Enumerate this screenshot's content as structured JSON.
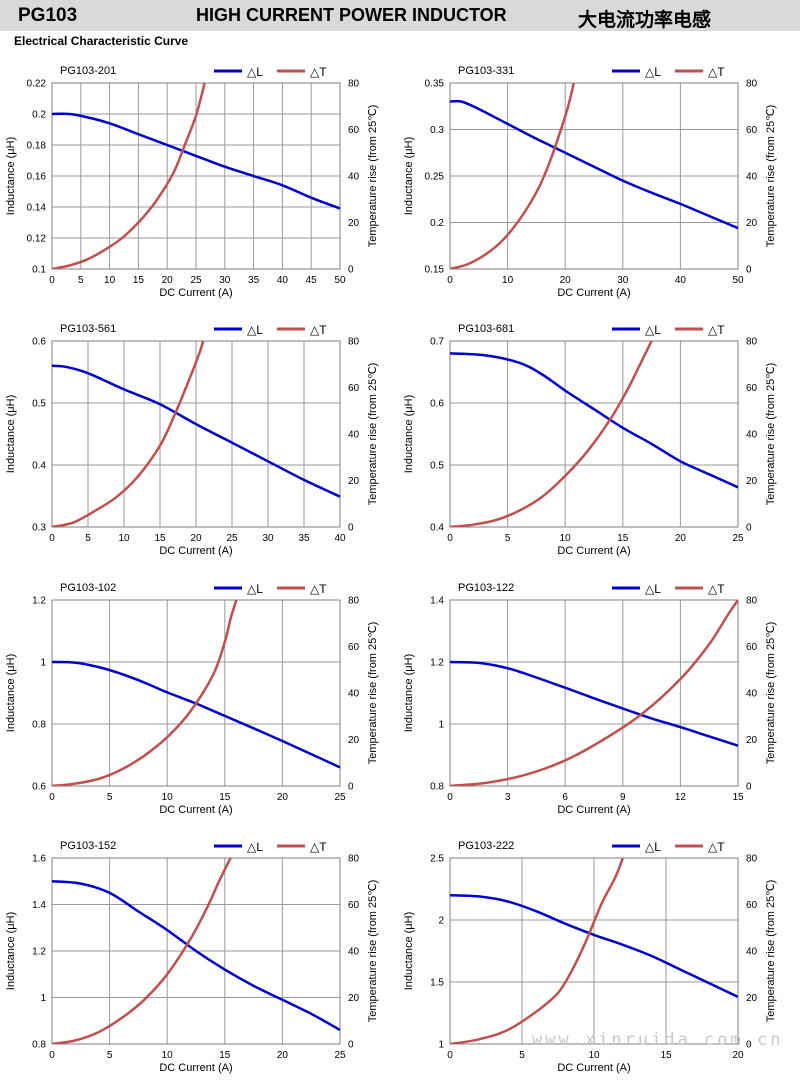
{
  "header": {
    "part_code": "PG103",
    "title": "HIGH CURRENT POWER INDUCTOR",
    "title_cn": "大电流功率电感"
  },
  "subtitle": "Electrical Characteristic Curve",
  "watermark": "www.xinruida.com.cn",
  "colors": {
    "inductance": "#0000cc",
    "temperature": "#c0504d",
    "grid": "#9a9a9a",
    "header_bg": "#d9d9d9"
  },
  "chart_data": [
    {
      "type": "line",
      "title": "PG103-201",
      "xlabel": "DC Current (A)",
      "ylabel": "Inductance (μH)",
      "y2label": "Temperature rise (from 25℃)",
      "legend": [
        "△L",
        "△T"
      ],
      "xlim": [
        0,
        50
      ],
      "xticks": [
        0,
        5,
        10,
        15,
        20,
        25,
        30,
        35,
        40,
        45,
        50
      ],
      "ylim": [
        0.1,
        0.22
      ],
      "yticks": [
        "0.1",
        "0.12",
        "0.14",
        "0.16",
        "0.18",
        "0.2",
        "0.22"
      ],
      "y2lim": [
        0,
        80
      ],
      "y2ticks": [
        0,
        20,
        40,
        60,
        80
      ],
      "series": [
        {
          "name": "△L",
          "axis": "left",
          "points": [
            [
              0,
              0.2
            ],
            [
              3,
              0.2
            ],
            [
              6,
              0.198
            ],
            [
              10,
              0.194
            ],
            [
              15,
              0.187
            ],
            [
              20,
              0.18
            ],
            [
              25,
              0.173
            ],
            [
              30,
              0.166
            ],
            [
              35,
              0.16
            ],
            [
              40,
              0.154
            ],
            [
              45,
              0.146
            ],
            [
              50,
              0.139
            ]
          ]
        },
        {
          "name": "△T",
          "axis": "right",
          "points": [
            [
              0,
              0
            ],
            [
              3,
              1.5
            ],
            [
              6,
              4
            ],
            [
              9,
              8
            ],
            [
              12,
              13
            ],
            [
              15,
              20
            ],
            [
              18,
              29
            ],
            [
              21,
              41
            ],
            [
              23,
              53
            ],
            [
              25,
              66
            ],
            [
              26.5,
              80
            ]
          ]
        }
      ]
    },
    {
      "type": "line",
      "title": "PG103-331",
      "xlabel": "DC Current (A)",
      "ylabel": "Inductance (μH)",
      "y2label": "Temperature rise (from 25℃)",
      "legend": [
        "△L",
        "△T"
      ],
      "xlim": [
        0,
        50
      ],
      "xticks": [
        0,
        10,
        20,
        30,
        40,
        50
      ],
      "ylim": [
        0.15,
        0.35
      ],
      "yticks": [
        "0.15",
        "0.2",
        "0.25",
        "0.3",
        "0.35"
      ],
      "y2lim": [
        0,
        80
      ],
      "y2ticks": [
        0,
        20,
        40,
        60,
        80
      ],
      "series": [
        {
          "name": "△L",
          "axis": "left",
          "points": [
            [
              0,
              0.33
            ],
            [
              2,
              0.33
            ],
            [
              5,
              0.322
            ],
            [
              10,
              0.306
            ],
            [
              15,
              0.29
            ],
            [
              20,
              0.275
            ],
            [
              25,
              0.26
            ],
            [
              30,
              0.245
            ],
            [
              35,
              0.232
            ],
            [
              40,
              0.22
            ],
            [
              45,
              0.207
            ],
            [
              50,
              0.194
            ]
          ]
        },
        {
          "name": "△T",
          "axis": "right",
          "points": [
            [
              0,
              0
            ],
            [
              3,
              2
            ],
            [
              6,
              6
            ],
            [
              9,
              12
            ],
            [
              12,
              21
            ],
            [
              15,
              33
            ],
            [
              17,
              44
            ],
            [
              19,
              58
            ],
            [
              20.5,
              70
            ],
            [
              21.5,
              80
            ]
          ]
        }
      ]
    },
    {
      "type": "line",
      "title": "PG103-561",
      "xlabel": "DC Current (A)",
      "ylabel": "Inductance (μH)",
      "y2label": "Temperature rise (from 25℃)",
      "legend": [
        "△L",
        "△T"
      ],
      "xlim": [
        0,
        40
      ],
      "xticks": [
        0,
        5,
        10,
        15,
        20,
        25,
        30,
        35,
        40
      ],
      "ylim": [
        0.3,
        0.6
      ],
      "yticks": [
        "0.3",
        "0.4",
        "0.5",
        "0.6"
      ],
      "y2lim": [
        0,
        80
      ],
      "y2ticks": [
        0,
        20,
        40,
        60,
        80
      ],
      "series": [
        {
          "name": "△L",
          "axis": "left",
          "points": [
            [
              0,
              0.56
            ],
            [
              2,
              0.558
            ],
            [
              5,
              0.548
            ],
            [
              10,
              0.522
            ],
            [
              15,
              0.498
            ],
            [
              20,
              0.466
            ],
            [
              25,
              0.436
            ],
            [
              30,
              0.406
            ],
            [
              35,
              0.376
            ],
            [
              40,
              0.349
            ]
          ]
        },
        {
          "name": "△T",
          "axis": "right",
          "points": [
            [
              0,
              0
            ],
            [
              3,
              2
            ],
            [
              6,
              7
            ],
            [
              9,
              13
            ],
            [
              12,
              22
            ],
            [
              15,
              35
            ],
            [
              17,
              48
            ],
            [
              19,
              63
            ],
            [
              20.5,
              75
            ],
            [
              21,
              80
            ]
          ]
        }
      ]
    },
    {
      "type": "line",
      "title": "PG103-681",
      "xlabel": "DC Current (A)",
      "ylabel": "Inductance (μH)",
      "y2label": "Temperature rise (from 25℃)",
      "legend": [
        "△L",
        "△T"
      ],
      "xlim": [
        0,
        25
      ],
      "xticks": [
        0,
        5,
        10,
        15,
        20,
        25
      ],
      "ylim": [
        0.4,
        0.7
      ],
      "yticks": [
        "0.4",
        "0.5",
        "0.6",
        "0.7"
      ],
      "y2lim": [
        0,
        80
      ],
      "y2ticks": [
        0,
        20,
        40,
        60,
        80
      ],
      "series": [
        {
          "name": "△L",
          "axis": "left",
          "points": [
            [
              0,
              0.68
            ],
            [
              3,
              0.677
            ],
            [
              6,
              0.665
            ],
            [
              8,
              0.646
            ],
            [
              10,
              0.62
            ],
            [
              12.5,
              0.59
            ],
            [
              15,
              0.56
            ],
            [
              17.5,
              0.534
            ],
            [
              20,
              0.506
            ],
            [
              22.5,
              0.485
            ],
            [
              25,
              0.464
            ]
          ]
        },
        {
          "name": "△T",
          "axis": "right",
          "points": [
            [
              0,
              0
            ],
            [
              2,
              1
            ],
            [
              4,
              3
            ],
            [
              6,
              7
            ],
            [
              8,
              13
            ],
            [
              10,
              22
            ],
            [
              12,
              33
            ],
            [
              14,
              47
            ],
            [
              15.5,
              60
            ],
            [
              16.5,
              70
            ],
            [
              17.5,
              80
            ]
          ]
        }
      ]
    },
    {
      "type": "line",
      "title": "PG103-102",
      "xlabel": "DC Current (A)",
      "ylabel": "Inductance (μH)",
      "y2label": "Temperature rise (from 25℃)",
      "legend": [
        "△L",
        "△T"
      ],
      "xlim": [
        0,
        25
      ],
      "xticks": [
        0,
        5,
        10,
        15,
        20,
        25
      ],
      "ylim": [
        0.6,
        1.2
      ],
      "yticks": [
        "0.6",
        "0.8",
        "1",
        "1.2"
      ],
      "y2lim": [
        0,
        80
      ],
      "y2ticks": [
        0,
        20,
        40,
        60,
        80
      ],
      "series": [
        {
          "name": "△L",
          "axis": "left",
          "points": [
            [
              0,
              1.0
            ],
            [
              2,
              0.998
            ],
            [
              4,
              0.984
            ],
            [
              6,
              0.962
            ],
            [
              8,
              0.934
            ],
            [
              10,
              0.902
            ],
            [
              12.5,
              0.866
            ],
            [
              15,
              0.826
            ],
            [
              17.5,
              0.786
            ],
            [
              20,
              0.745
            ],
            [
              22.5,
              0.703
            ],
            [
              25,
              0.66
            ]
          ]
        },
        {
          "name": "△T",
          "axis": "right",
          "points": [
            [
              0,
              0
            ],
            [
              2,
              1
            ],
            [
              4,
              3
            ],
            [
              6,
              7
            ],
            [
              8,
              13
            ],
            [
              10,
              21
            ],
            [
              12,
              32
            ],
            [
              14,
              48
            ],
            [
              15,
              62
            ],
            [
              15.5,
              72
            ],
            [
              16,
              80
            ]
          ]
        }
      ]
    },
    {
      "type": "line",
      "title": "PG103-122",
      "xlabel": "DC Current (A)",
      "ylabel": "Inductance (μH)",
      "y2label": "Temperature rise (from 25℃)",
      "legend": [
        "△L",
        "△T"
      ],
      "xlim": [
        0,
        15
      ],
      "xticks": [
        0,
        3,
        6,
        9,
        12,
        15
      ],
      "ylim": [
        0.8,
        1.4
      ],
      "yticks": [
        "0.8",
        "1",
        "1.2",
        "1.4"
      ],
      "y2lim": [
        0,
        80
      ],
      "y2ticks": [
        0,
        20,
        40,
        60,
        80
      ],
      "series": [
        {
          "name": "△L",
          "axis": "left",
          "points": [
            [
              0,
              1.2
            ],
            [
              1.5,
              1.197
            ],
            [
              3,
              1.18
            ],
            [
              4.5,
              1.15
            ],
            [
              6,
              1.117
            ],
            [
              7.5,
              1.083
            ],
            [
              9,
              1.05
            ],
            [
              10.5,
              1.018
            ],
            [
              12,
              0.99
            ],
            [
              13.5,
              0.96
            ],
            [
              15,
              0.93
            ]
          ]
        },
        {
          "name": "△T",
          "axis": "right",
          "points": [
            [
              0,
              0
            ],
            [
              2,
              1.5
            ],
            [
              4,
              5
            ],
            [
              6,
              11
            ],
            [
              8,
              20
            ],
            [
              10,
              31
            ],
            [
              12,
              46
            ],
            [
              13.5,
              61
            ],
            [
              14.5,
              74
            ],
            [
              15,
              80
            ]
          ]
        }
      ]
    },
    {
      "type": "line",
      "title": "PG103-152",
      "xlabel": "DC Current (A)",
      "ylabel": "Inductance (μH)",
      "y2label": "Temperature rise (from 25℃)",
      "legend": [
        "△L",
        "△T"
      ],
      "xlim": [
        0,
        25
      ],
      "xticks": [
        0,
        5,
        10,
        15,
        20,
        25
      ],
      "ylim": [
        0.8,
        1.6
      ],
      "yticks": [
        "0.8",
        "1",
        "1.2",
        "1.4",
        "1.6"
      ],
      "y2lim": [
        0,
        80
      ],
      "y2ticks": [
        0,
        20,
        40,
        60,
        80
      ],
      "series": [
        {
          "name": "△L",
          "axis": "left",
          "points": [
            [
              0,
              1.5
            ],
            [
              2.5,
              1.49
            ],
            [
              5,
              1.45
            ],
            [
              7.5,
              1.37
            ],
            [
              10,
              1.29
            ],
            [
              12.5,
              1.2
            ],
            [
              15,
              1.12
            ],
            [
              17.5,
              1.05
            ],
            [
              20,
              0.99
            ],
            [
              22.5,
              0.93
            ],
            [
              25,
              0.86
            ]
          ]
        },
        {
          "name": "△T",
          "axis": "right",
          "points": [
            [
              0,
              0
            ],
            [
              2,
              1.5
            ],
            [
              4,
              5
            ],
            [
              6,
              11
            ],
            [
              8,
              19
            ],
            [
              10,
              30
            ],
            [
              12,
              45
            ],
            [
              13.5,
              59
            ],
            [
              14.5,
              70
            ],
            [
              15.5,
              80
            ]
          ]
        }
      ]
    },
    {
      "type": "line",
      "title": "PG103-222",
      "xlabel": "DC Current (A)",
      "ylabel": "Inductance (μH)",
      "y2label": "Temperature rise (from 25℃)",
      "legend": [
        "△L",
        "△T"
      ],
      "xlim": [
        0,
        20
      ],
      "xticks": [
        0,
        5,
        10,
        15,
        20
      ],
      "ylim": [
        1,
        2.5
      ],
      "yticks": [
        "1",
        "1.5",
        "2",
        "2.5"
      ],
      "y2lim": [
        0,
        80
      ],
      "y2ticks": [
        0,
        20,
        40,
        60,
        80
      ],
      "series": [
        {
          "name": "△L",
          "axis": "left",
          "points": [
            [
              0,
              2.2
            ],
            [
              2,
              2.19
            ],
            [
              4,
              2.15
            ],
            [
              6,
              2.07
            ],
            [
              8,
              1.97
            ],
            [
              10,
              1.88
            ],
            [
              12,
              1.8
            ],
            [
              14,
              1.71
            ],
            [
              16,
              1.6
            ],
            [
              18,
              1.49
            ],
            [
              20,
              1.38
            ]
          ]
        },
        {
          "name": "△T",
          "axis": "right",
          "points": [
            [
              0,
              0
            ],
            [
              2,
              2
            ],
            [
              4,
              6
            ],
            [
              6,
              14
            ],
            [
              7.5,
              22
            ],
            [
              8.5,
              32
            ],
            [
              9.5,
              45
            ],
            [
              10.5,
              60
            ],
            [
              11.5,
              72
            ],
            [
              12,
              80
            ]
          ]
        }
      ]
    }
  ]
}
